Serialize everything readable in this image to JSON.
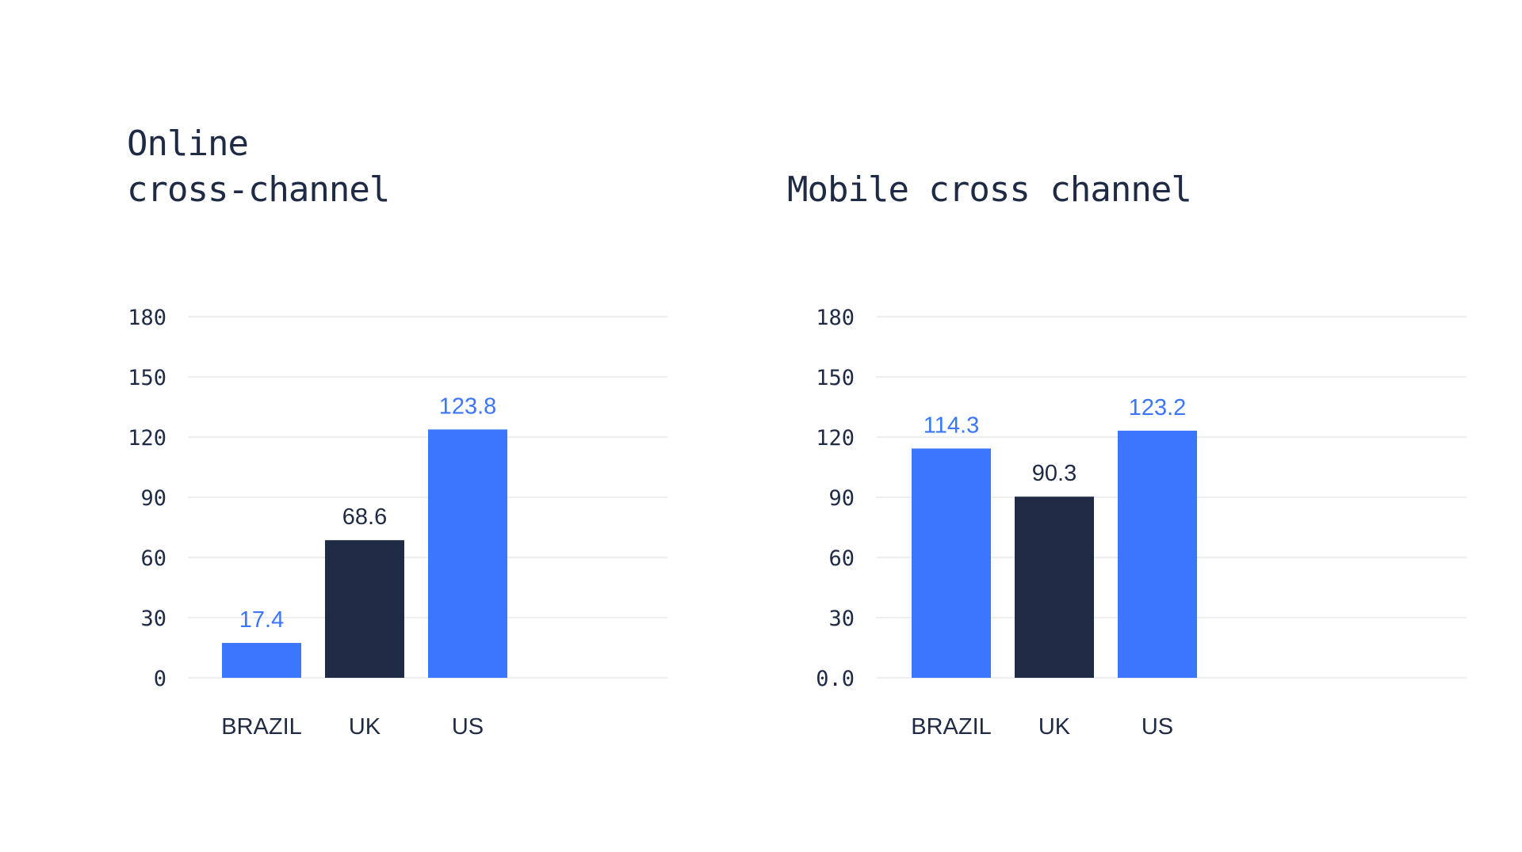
{
  "colors": {
    "accent_blue": "#3b76fc",
    "dark_navy": "#1f2a44",
    "grid": "#e3e3e3",
    "text": "#1f2a44"
  },
  "chart_data": [
    {
      "type": "bar",
      "title_lines": [
        "Online",
        "cross-channel"
      ],
      "categories": [
        "BRAZIL",
        "UK",
        "US"
      ],
      "values": [
        17.4,
        68.6,
        123.8
      ],
      "value_labels": [
        "17.4",
        "68.6",
        "123.8"
      ],
      "bar_colors": [
        "#3b76fc",
        "#1f2a44",
        "#3b76fc"
      ],
      "label_colors": [
        "#3b76fc",
        "#1f2a44",
        "#3b76fc"
      ],
      "yticks": [
        0,
        30,
        60,
        90,
        120,
        150,
        180
      ],
      "ytick_labels": [
        "0",
        "30",
        "60",
        "90",
        "120",
        "150",
        "180"
      ],
      "ylim": [
        0,
        180
      ],
      "grid": true,
      "xlabel": "",
      "ylabel": ""
    },
    {
      "type": "bar",
      "title_lines": [
        "Mobile cross channel"
      ],
      "categories": [
        "BRAZIL",
        "UK",
        "US"
      ],
      "values": [
        114.3,
        90.3,
        123.2
      ],
      "value_labels": [
        "114.3",
        "90.3",
        "123.2"
      ],
      "bar_colors": [
        "#3b76fc",
        "#1f2a44",
        "#3b76fc"
      ],
      "label_colors": [
        "#3b76fc",
        "#1f2a44",
        "#3b76fc"
      ],
      "yticks": [
        0,
        30,
        60,
        90,
        120,
        150,
        180
      ],
      "ytick_labels": [
        "0.0",
        "30",
        "60",
        "90",
        "120",
        "150",
        "180"
      ],
      "ylim": [
        0,
        180
      ],
      "grid": true,
      "xlabel": "",
      "ylabel": ""
    }
  ]
}
